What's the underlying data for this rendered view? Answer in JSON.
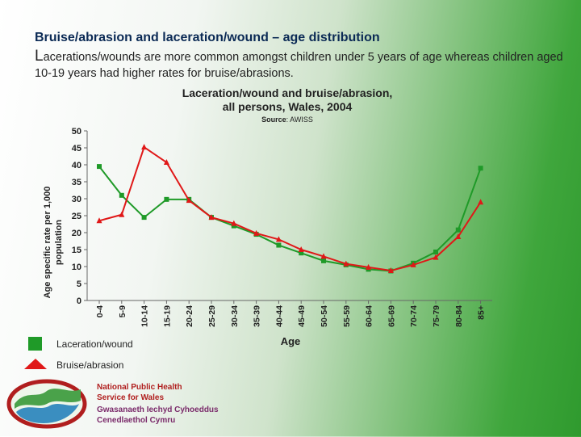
{
  "slide": {
    "title": "Bruise/abrasion and laceration/wound – age distribution",
    "body_first_letter": "L",
    "body_rest": "acerations/wounds are more common amongst children under 5 years of age whereas children aged 10-19 years had higher rates for bruise/abrasions."
  },
  "chart_data": {
    "type": "line",
    "title_line1": "Laceration/wound and bruise/abrasion,",
    "title_line2": "all persons, Wales, 2004",
    "source_label": "Source",
    "source_value": ": AWISS",
    "xlabel": "Age",
    "ylabel_line1": "Age specific rate per 1,000",
    "ylabel_line2": "population",
    "ylim": [
      0,
      50
    ],
    "yticks": [
      0,
      5,
      10,
      15,
      20,
      25,
      30,
      35,
      40,
      45,
      50
    ],
    "categories": [
      "0-4",
      "5-9",
      "10-14",
      "15-19",
      "20-24",
      "25-29",
      "30-34",
      "35-39",
      "40-44",
      "45-49",
      "50-54",
      "55-59",
      "60-64",
      "65-69",
      "70-74",
      "75-79",
      "80-84",
      "85+"
    ],
    "series": [
      {
        "name": "Laceration/wound",
        "color": "#1f9a28",
        "marker": "square",
        "values": [
          39.5,
          31,
          24.5,
          29.8,
          29.8,
          24.5,
          22,
          19.5,
          16.3,
          14,
          11.7,
          10.5,
          9.2,
          8.7,
          11,
          14.3,
          20.8,
          39
        ]
      },
      {
        "name": "Bruise/abrasion",
        "color": "#e01818",
        "marker": "triangle",
        "values": [
          23.5,
          25.3,
          45.2,
          40.7,
          29.5,
          24.5,
          22.7,
          19.8,
          18,
          15,
          13,
          10.8,
          9.8,
          8.8,
          10.5,
          12.7,
          18.8,
          29
        ]
      }
    ]
  },
  "legend": {
    "laceration_label": "Laceration/wound",
    "bruise_label": "Bruise/abrasion"
  },
  "logo": {
    "line1": "National Public Health",
    "line2": "Service for Wales",
    "line3": "Gwasanaeth Iechyd Cyhoeddus",
    "line4": "Cenedlaethol Cymru",
    "color_en": "#b01e1e",
    "color_cy": "#7a2a6a"
  }
}
